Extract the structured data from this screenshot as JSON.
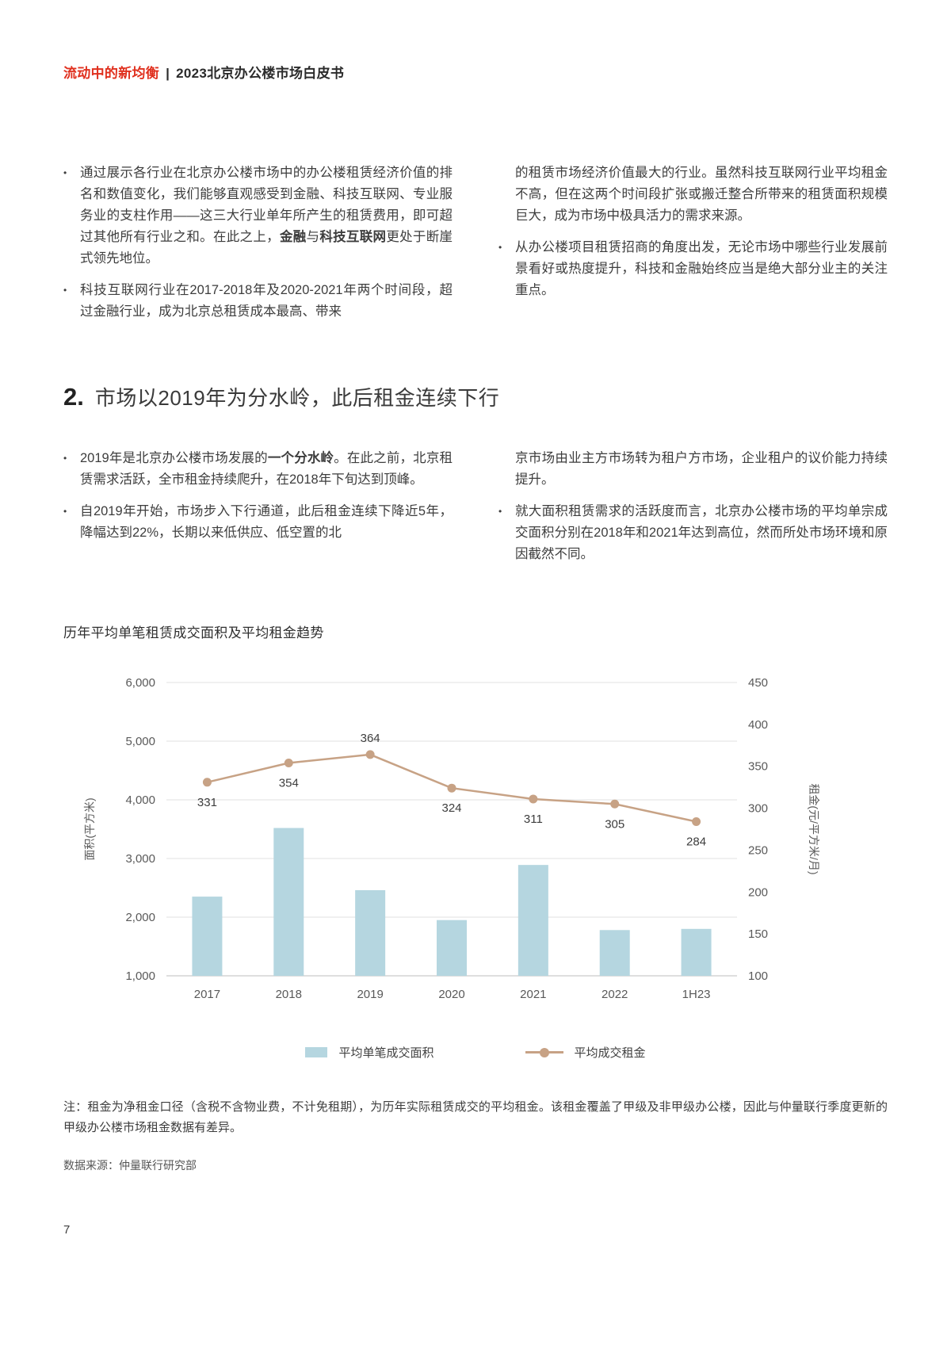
{
  "header": {
    "title_red": "流动中的新均衡",
    "divider": "|",
    "title_dark": "2023北京办公楼市场白皮书"
  },
  "section1": {
    "left": [
      {
        "bullet": true,
        "segments": [
          {
            "t": "通过展示各行业在北京办公楼市场中的办公楼租赁经济价值的排名和数值变化，我们能够直观感受到金融、科技互联网、专业服务业的支柱作用——这三大行业单年所产生的租赁费用，即可超过其他所有行业之和。在此之上，",
            "b": false
          },
          {
            "t": "金融",
            "b": true
          },
          {
            "t": "与",
            "b": false
          },
          {
            "t": "科技互联网",
            "b": true
          },
          {
            "t": "更处于断崖式领先地位。",
            "b": false
          }
        ]
      },
      {
        "bullet": true,
        "segments": [
          {
            "t": "科技互联网行业在2017-2018年及2020-2021年两个时间段，超过金融行业，成为北京总租赁成本最高、带来",
            "b": false
          }
        ]
      }
    ],
    "right": [
      {
        "bullet": false,
        "segments": [
          {
            "t": "的租赁市场经济价值最大的行业。虽然科技互联网行业平均租金不高，但在这两个时间段扩张或搬迁整合所带来的租赁面积规模巨大，成为市场中极具活力的需求来源。",
            "b": false
          }
        ]
      },
      {
        "bullet": true,
        "segments": [
          {
            "t": "从办公楼项目租赁招商的角度出发，无论市场中哪些行业发展前景看好或热度提升，科技和金融始终应当是绝大部分业主的关注重点。",
            "b": false
          }
        ]
      }
    ]
  },
  "section2": {
    "number": "2.",
    "title": "市场以2019年为分水岭，此后租金连续下行",
    "left": [
      {
        "bullet": true,
        "segments": [
          {
            "t": "2019年是北京办公楼市场发展的",
            "b": false
          },
          {
            "t": "一个分水岭",
            "b": true
          },
          {
            "t": "。在此之前，北京租赁需求活跃，全市租金持续爬升，在2018年下旬达到顶峰。",
            "b": false
          }
        ]
      },
      {
        "bullet": true,
        "segments": [
          {
            "t": "自2019年开始，市场步入下行通道，此后租金连续下降近5年，降幅达到22%，长期以来低供应、低空置的北",
            "b": false
          }
        ]
      }
    ],
    "right": [
      {
        "bullet": false,
        "segments": [
          {
            "t": "京市场由业主方市场转为租户方市场，企业租户的议价能力持续提升。",
            "b": false
          }
        ]
      },
      {
        "bullet": true,
        "segments": [
          {
            "t": "就大面积租赁需求的活跃度而言，北京办公楼市场的平均单宗成交面积分别在2018年和2021年达到高位，然而所处市场环境和原因截然不同。",
            "b": false
          }
        ]
      }
    ]
  },
  "chart_data": {
    "type": "bar",
    "title": "历年平均单笔租赁成交面积及平均租金趋势",
    "categories": [
      "2017",
      "2018",
      "2019",
      "2020",
      "2021",
      "2022",
      "1H23"
    ],
    "series": [
      {
        "name": "平均单笔成交面积",
        "type": "bar",
        "axis": "left",
        "values": [
          2350,
          3520,
          2460,
          1950,
          2890,
          1780,
          1800
        ],
        "color": "#b5d6e0"
      },
      {
        "name": "平均成交租金",
        "type": "line",
        "axis": "right",
        "values": [
          331,
          354,
          364,
          324,
          311,
          305,
          284
        ],
        "color": "#c7a285",
        "labels": true
      }
    ],
    "left_axis": {
      "label": "面积(平方米)",
      "min": 1000,
      "max": 6000,
      "step": 1000
    },
    "right_axis": {
      "label": "租金(元/平方米/月)",
      "min": 100,
      "max": 450,
      "step": 50
    },
    "grid": true,
    "legend_position": "bottom"
  },
  "notes": {
    "note": "注：租金为净租金口径（含税不含物业费，不计免租期），为历年实际租赁成交的平均租金。该租金覆盖了甲级及非甲级办公楼，因此与仲量联行季度更新的甲级办公楼市场租金数据有差异。",
    "source": "数据来源：仲量联行研究部"
  },
  "page_number": "7"
}
